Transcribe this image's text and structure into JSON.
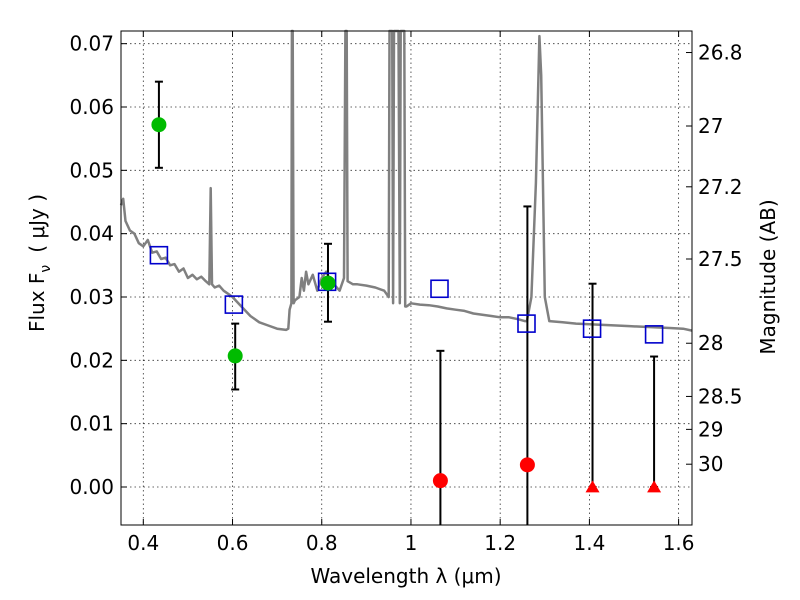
{
  "chart_data": {
    "type": "scatter",
    "xlabel": "Wavelength  λ (μm)",
    "ylabel": "Flux  F",
    "ylabel_sub": "ν",
    "ylabel_unit": "( μJy )",
    "y2label": "Magnitude (AB)",
    "xlim": [
      0.35,
      1.63
    ],
    "ylim": [
      -0.006,
      0.072
    ],
    "grid": true,
    "x_ticks": [
      0.4,
      0.6,
      0.8,
      1.0,
      1.2,
      1.4,
      1.6
    ],
    "x_tick_labels": [
      "0.4",
      "0.6",
      "0.8",
      "1",
      "1.2",
      "1.4",
      "1.6"
    ],
    "y_ticks": [
      0.0,
      0.01,
      0.02,
      0.03,
      0.04,
      0.05,
      0.06,
      0.07
    ],
    "y_tick_labels": [
      "0.00",
      "0.01",
      "0.02",
      "0.03",
      "0.04",
      "0.05",
      "0.06",
      "0.07"
    ],
    "y2_ticks": [
      {
        "label": "26.8",
        "flux": 0.0686
      },
      {
        "label": "27",
        "flux": 0.057
      },
      {
        "label": "27.2",
        "flux": 0.0474
      },
      {
        "label": "27.5",
        "flux": 0.036
      },
      {
        "label": "28",
        "flux": 0.0227
      },
      {
        "label": "28.5",
        "flux": 0.0143
      },
      {
        "label": "29",
        "flux": 0.0091
      },
      {
        "label": "30",
        "flux": 0.0036
      }
    ],
    "series": [
      {
        "kind": "sed_model",
        "color": "#808080",
        "points": [
          [
            0.35,
            0.0445
          ],
          [
            0.355,
            0.0455
          ],
          [
            0.36,
            0.042
          ],
          [
            0.37,
            0.0405
          ],
          [
            0.38,
            0.04
          ],
          [
            0.39,
            0.0385
          ],
          [
            0.4,
            0.038
          ],
          [
            0.41,
            0.039
          ],
          [
            0.42,
            0.037
          ],
          [
            0.43,
            0.0372
          ],
          [
            0.44,
            0.036
          ],
          [
            0.45,
            0.0362
          ],
          [
            0.46,
            0.035
          ],
          [
            0.47,
            0.0352
          ],
          [
            0.48,
            0.034
          ],
          [
            0.49,
            0.0345
          ],
          [
            0.5,
            0.033
          ],
          [
            0.51,
            0.0335
          ],
          [
            0.52,
            0.0328
          ],
          [
            0.53,
            0.0332
          ],
          [
            0.54,
            0.0325
          ],
          [
            0.548,
            0.032
          ],
          [
            0.551,
            0.0472
          ],
          [
            0.554,
            0.032
          ],
          [
            0.56,
            0.0315
          ],
          [
            0.57,
            0.0318
          ],
          [
            0.58,
            0.031
          ],
          [
            0.59,
            0.0305
          ],
          [
            0.6,
            0.03
          ],
          [
            0.62,
            0.0285
          ],
          [
            0.64,
            0.027
          ],
          [
            0.66,
            0.026
          ],
          [
            0.68,
            0.0255
          ],
          [
            0.7,
            0.025
          ],
          [
            0.72,
            0.0248
          ],
          [
            0.725,
            0.025
          ],
          [
            0.728,
            0.028
          ],
          [
            0.732,
            0.029
          ],
          [
            0.733,
            0.072
          ],
          [
            0.735,
            0.072
          ],
          [
            0.737,
            0.029
          ],
          [
            0.74,
            0.0295
          ],
          [
            0.75,
            0.03
          ],
          [
            0.755,
            0.033
          ],
          [
            0.76,
            0.031
          ],
          [
            0.765,
            0.034
          ],
          [
            0.77,
            0.032
          ],
          [
            0.78,
            0.0335
          ],
          [
            0.79,
            0.031
          ],
          [
            0.8,
            0.033
          ],
          [
            0.81,
            0.034
          ],
          [
            0.82,
            0.0325
          ],
          [
            0.83,
            0.0318
          ],
          [
            0.84,
            0.031
          ],
          [
            0.85,
            0.033
          ],
          [
            0.853,
            0.072
          ],
          [
            0.856,
            0.072
          ],
          [
            0.858,
            0.0325
          ],
          [
            0.87,
            0.032
          ],
          [
            0.88,
            0.032
          ],
          [
            0.9,
            0.0318
          ],
          [
            0.92,
            0.0315
          ],
          [
            0.94,
            0.031
          ],
          [
            0.95,
            0.03
          ],
          [
            0.952,
            0.072
          ],
          [
            0.958,
            0.072
          ],
          [
            0.96,
            0.029
          ],
          [
            0.962,
            0.072
          ],
          [
            0.972,
            0.072
          ],
          [
            0.975,
            0.029
          ],
          [
            0.977,
            0.072
          ],
          [
            0.985,
            0.072
          ],
          [
            0.987,
            0.0285
          ],
          [
            0.99,
            0.0285
          ],
          [
            1.0,
            0.029
          ],
          [
            1.02,
            0.0288
          ],
          [
            1.04,
            0.0287
          ],
          [
            1.06,
            0.0285
          ],
          [
            1.08,
            0.0282
          ],
          [
            1.1,
            0.028
          ],
          [
            1.12,
            0.0278
          ],
          [
            1.14,
            0.0274
          ],
          [
            1.16,
            0.0272
          ],
          [
            1.18,
            0.027
          ],
          [
            1.2,
            0.0268
          ],
          [
            1.22,
            0.0268
          ],
          [
            1.24,
            0.0265
          ],
          [
            1.255,
            0.0262
          ],
          [
            1.26,
            0.0262
          ],
          [
            1.27,
            0.03
          ],
          [
            1.28,
            0.048
          ],
          [
            1.288,
            0.0712
          ],
          [
            1.292,
            0.065
          ],
          [
            1.3,
            0.03
          ],
          [
            1.31,
            0.0262
          ],
          [
            1.34,
            0.026
          ],
          [
            1.37,
            0.0258
          ],
          [
            1.4,
            0.0257
          ],
          [
            1.43,
            0.0256
          ],
          [
            1.46,
            0.0255
          ],
          [
            1.49,
            0.0254
          ],
          [
            1.52,
            0.0253
          ],
          [
            1.55,
            0.0252
          ],
          [
            1.58,
            0.0251
          ],
          [
            1.61,
            0.025
          ],
          [
            1.63,
            0.0247
          ]
        ]
      },
      {
        "kind": "model_photometry",
        "marker": "open-square",
        "color": "#0000cc",
        "points": [
          [
            0.435,
            0.0366
          ],
          [
            0.603,
            0.0288
          ],
          [
            0.812,
            0.0324
          ],
          [
            1.064,
            0.0313
          ],
          [
            1.259,
            0.0258
          ],
          [
            1.406,
            0.025
          ],
          [
            1.545,
            0.0241
          ]
        ]
      },
      {
        "kind": "detections",
        "marker": "circle",
        "color": "#00bb00",
        "points": [
          {
            "x": 0.435,
            "y": 0.0572,
            "lo": 0.0504,
            "hi": 0.064
          },
          {
            "x": 0.606,
            "y": 0.0207,
            "lo": 0.0154,
            "hi": 0.0258
          },
          {
            "x": 0.814,
            "y": 0.0322,
            "lo": 0.0261,
            "hi": 0.0384
          }
        ]
      },
      {
        "kind": "non_detections",
        "marker": "circle",
        "color": "#ff0000",
        "points": [
          {
            "x": 1.066,
            "y": 0.001,
            "lo": -0.006,
            "hi": 0.0215
          },
          {
            "x": 1.261,
            "y": 0.0035,
            "lo": -0.006,
            "hi": 0.0443
          }
        ]
      },
      {
        "kind": "upper_limits",
        "marker": "triangle",
        "color": "#ff0000",
        "points": [
          {
            "x": 1.407,
            "y": 0.0,
            "lo": 0.0,
            "hi": 0.0321
          },
          {
            "x": 1.545,
            "y": 0.0,
            "lo": 0.0,
            "hi": 0.0206
          }
        ]
      }
    ]
  }
}
